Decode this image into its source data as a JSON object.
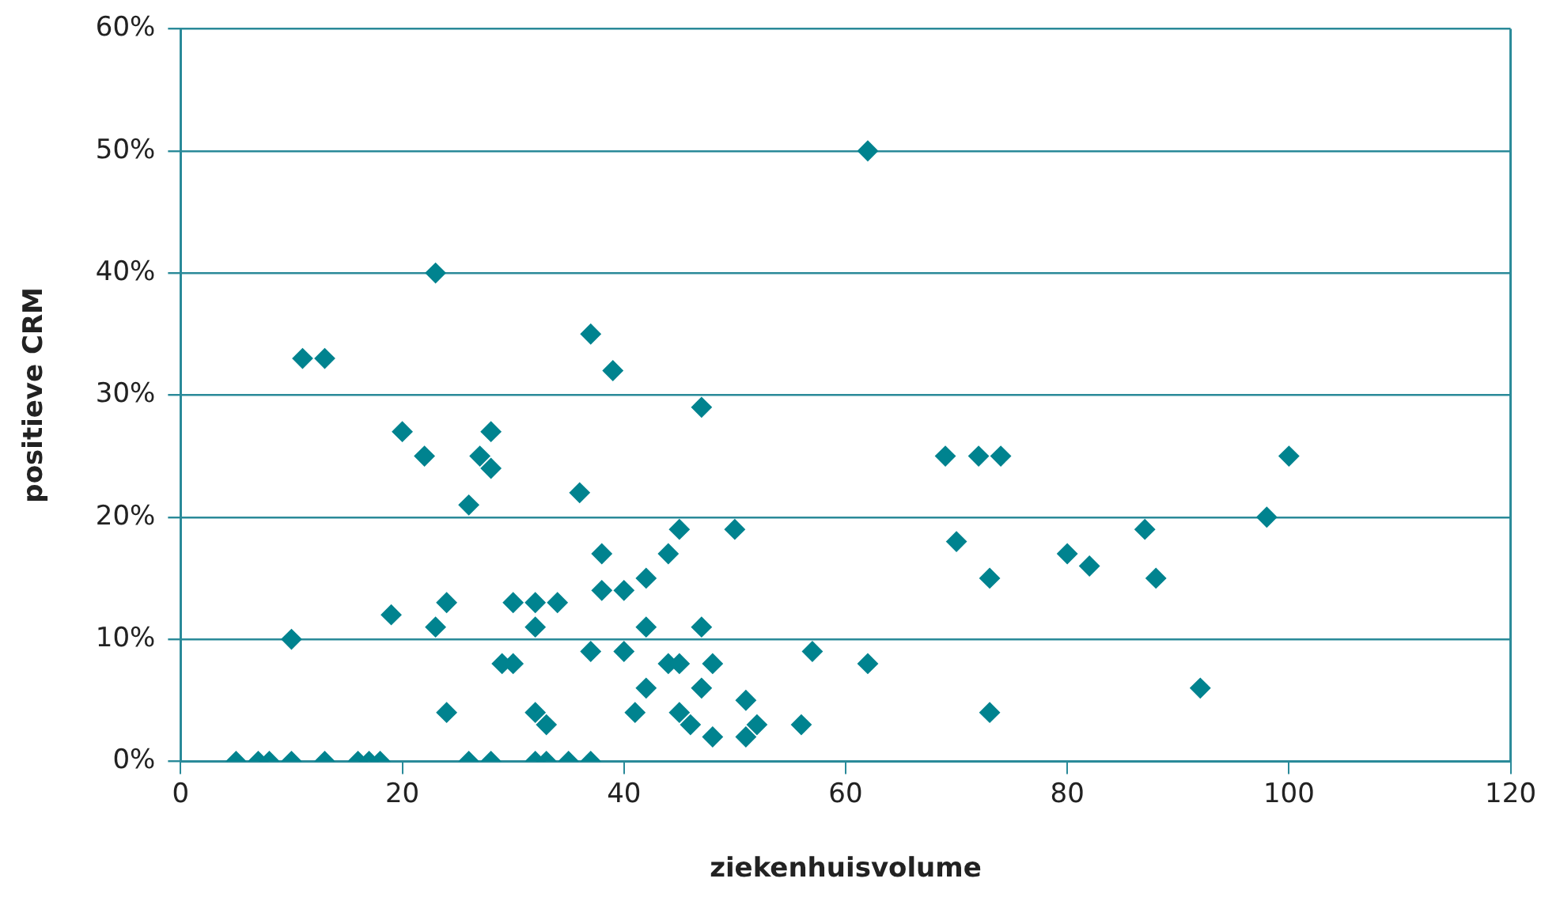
{
  "chart_data": {
    "type": "scatter",
    "xlabel": "ziekenhuisvolume",
    "ylabel": "positieve CRM",
    "xlim": [
      0,
      120
    ],
    "xticks": [
      0,
      20,
      40,
      60,
      80,
      100,
      120
    ],
    "ylim": [
      0,
      60
    ],
    "yticks": [
      {
        "value": 0,
        "label": "0%"
      },
      {
        "value": 10,
        "label": "10%"
      },
      {
        "value": 20,
        "label": "20%"
      },
      {
        "value": 30,
        "label": "30%"
      },
      {
        "value": 40,
        "label": "40%"
      },
      {
        "value": 50,
        "label": "50%"
      },
      {
        "value": 60,
        "label": "60%"
      }
    ],
    "grid": "y",
    "legend": false,
    "marker": "diamond",
    "series": [
      {
        "color": "#00838f",
        "x": [
          5,
          7,
          8,
          10,
          13,
          16,
          17,
          18,
          26,
          28,
          32,
          33,
          35,
          37,
          10,
          11,
          13,
          19,
          20,
          22,
          23,
          23,
          24,
          24,
          26,
          27,
          28,
          28,
          29,
          30,
          30,
          32,
          32,
          32,
          33,
          34,
          36,
          37,
          37,
          38,
          38,
          39,
          40,
          40,
          41,
          42,
          42,
          42,
          44,
          44,
          45,
          45,
          45,
          46,
          47,
          47,
          47,
          48,
          48,
          50,
          51,
          51,
          52,
          56,
          57,
          62,
          62,
          69,
          70,
          72,
          73,
          73,
          74,
          80,
          82,
          87,
          88,
          92,
          98,
          100
        ],
        "values": [
          0,
          0,
          0,
          0,
          0,
          0,
          0,
          0,
          0,
          0,
          0,
          0,
          0,
          0,
          10,
          33,
          33,
          12,
          27,
          25,
          40,
          11,
          13,
          4,
          21,
          25,
          24,
          27,
          8,
          13,
          8,
          13,
          11,
          4,
          3,
          13,
          22,
          35,
          9,
          17,
          14,
          32,
          14,
          9,
          4,
          15,
          11,
          6,
          17,
          8,
          19,
          8,
          4,
          3,
          29,
          11,
          6,
          8,
          2,
          19,
          5,
          2,
          3,
          3,
          9,
          50,
          8,
          25,
          18,
          25,
          15,
          4,
          25,
          17,
          16,
          19,
          15,
          6,
          20,
          25
        ]
      }
    ]
  }
}
